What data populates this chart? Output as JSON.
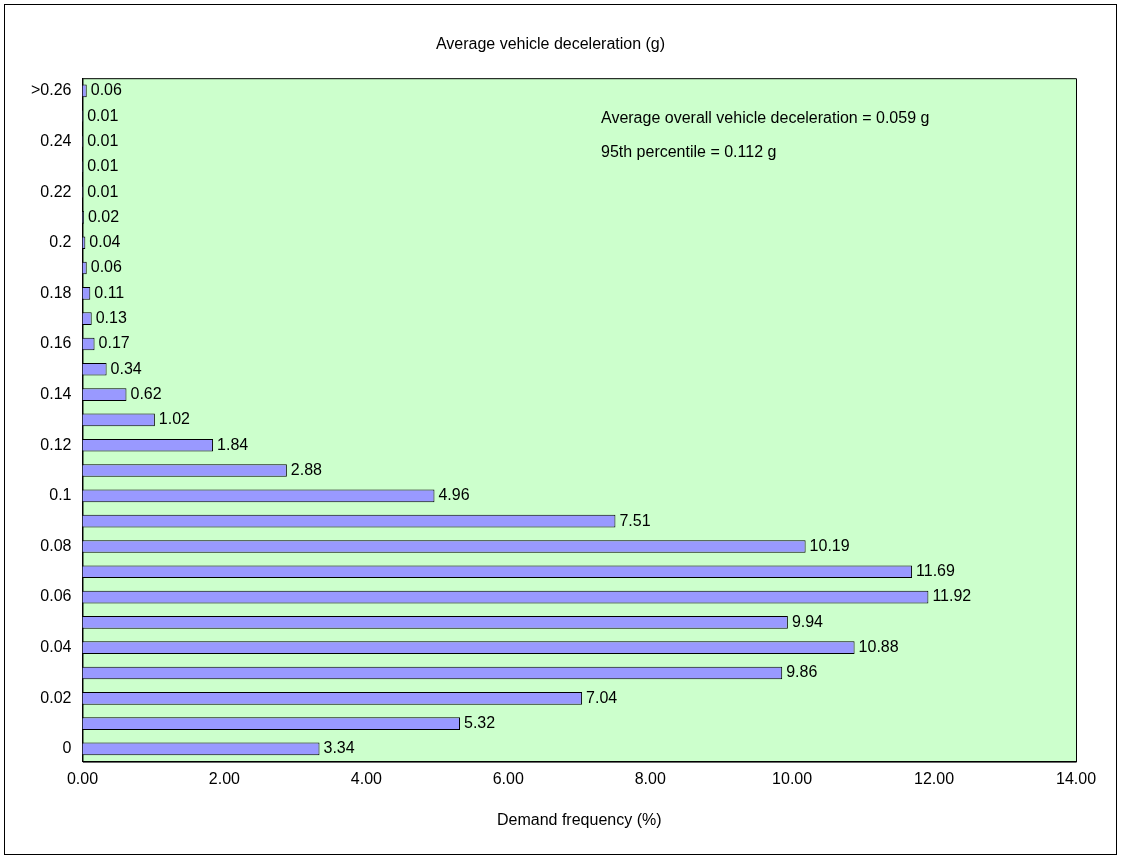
{
  "chart_data": {
    "type": "bar",
    "orientation": "horizontal",
    "title": "Average vehicle deceleration (g)",
    "xlabel": "Demand frequency (%)",
    "categories": [
      ">0.26",
      null,
      "0.24",
      null,
      "0.22",
      null,
      "0.2",
      null,
      "0.18",
      null,
      "0.16",
      null,
      "0.14",
      null,
      "0.12",
      null,
      "0.1",
      null,
      "0.08",
      null,
      "0.06",
      null,
      "0.04",
      null,
      "0.02",
      null,
      "0"
    ],
    "values": [
      0.06,
      0.01,
      0.01,
      0.01,
      0.01,
      0.02,
      0.04,
      0.06,
      0.11,
      0.13,
      0.17,
      0.34,
      0.62,
      1.02,
      1.84,
      2.88,
      4.96,
      7.51,
      10.19,
      11.69,
      11.92,
      9.94,
      10.88,
      9.86,
      7.04,
      5.32,
      3.34
    ],
    "color": "#9999ff",
    "data_labels": true,
    "grid": false,
    "legend": false,
    "xlim": [
      0,
      14
    ],
    "xticks": [
      {
        "value": 0,
        "label": "0.00"
      },
      {
        "value": 2,
        "label": "2.00"
      },
      {
        "value": 4,
        "label": "4.00"
      },
      {
        "value": 6,
        "label": "6.00"
      },
      {
        "value": 8,
        "label": "8.00"
      },
      {
        "value": 10,
        "label": "10.00"
      },
      {
        "value": 12,
        "label": "12.00"
      },
      {
        "value": 14,
        "label": "14.00"
      }
    ],
    "annotations": [
      "Average overall vehicle deceleration = 0.059 g",
      "95th percentile = 0.112 g"
    ]
  }
}
